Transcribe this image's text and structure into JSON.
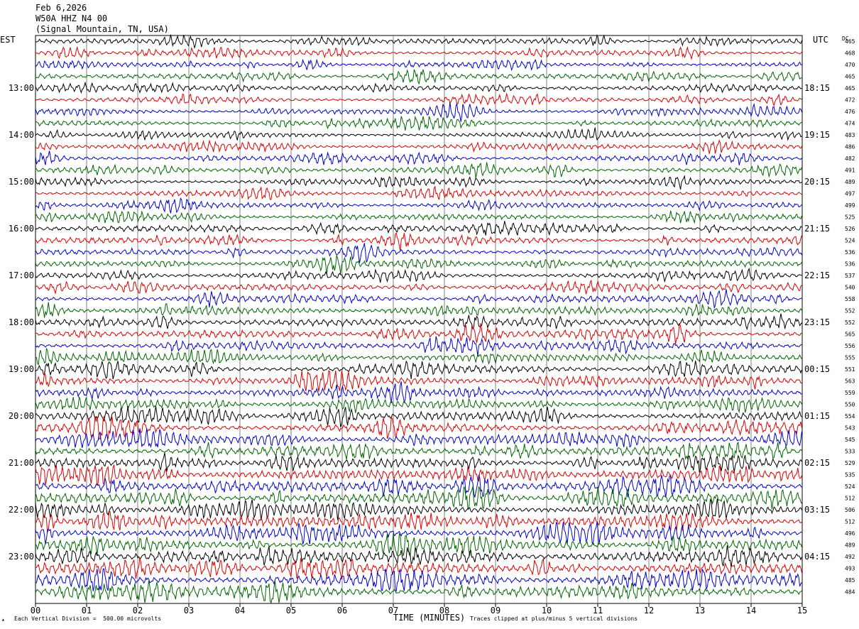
{
  "header": {
    "date": "Feb 6,2026",
    "station": "W50A HHZ N4 00",
    "location": "(Signal Mountain, TN, USA)"
  },
  "left_axis_title": "EST",
  "right_axis_title": "UTC",
  "dc_title": "DC",
  "footer": {
    "scale_note": "Each Vertical Division =  500.00 microvolts",
    "xaxis_title": "TIME (MINUTES)",
    "clip_note": "Traces clipped at plus/minus 5 vertical divisions"
  },
  "colors": {
    "trace_cycle": [
      "#000000",
      "#dd0000",
      "#0000cc",
      "#006600"
    ],
    "grid": "#808080"
  },
  "chart_data": {
    "type": "line",
    "description_of_axes": "helicorder: one trace per 15 minutes, 4 traces per hour",
    "xlabel": "TIME (MINUTES)",
    "x_ticks": [
      "00",
      "01",
      "02",
      "03",
      "04",
      "05",
      "06",
      "07",
      "08",
      "09",
      "10",
      "11",
      "12",
      "13",
      "14",
      "15"
    ],
    "xlim": [
      0,
      15
    ],
    "left_hour_labels": [
      "13:00",
      "14:00",
      "15:00",
      "16:00",
      "17:00",
      "18:00",
      "19:00",
      "20:00",
      "21:00",
      "22:00",
      "23:00"
    ],
    "right_hour_labels": [
      "18:15",
      "19:15",
      "20:15",
      "21:15",
      "22:15",
      "23:15",
      "00:15",
      "01:15",
      "02:15",
      "03:15",
      "04:15"
    ],
    "dc_offsets": [
      465,
      468,
      470,
      465,
      465,
      472,
      476,
      474,
      483,
      486,
      482,
      491,
      489,
      497,
      499,
      525,
      526,
      524,
      536,
      536,
      537,
      540,
      558,
      552,
      552,
      565,
      556,
      555,
      551,
      563,
      559,
      550,
      554,
      543,
      545,
      533,
      529,
      535,
      524,
      512,
      506,
      512,
      496,
      489,
      492,
      493,
      485,
      484
    ],
    "trace_amplitude": [
      0.3,
      0.32,
      0.28,
      0.3,
      0.3,
      0.3,
      0.32,
      0.32,
      0.3,
      0.32,
      0.32,
      0.32,
      0.32,
      0.32,
      0.32,
      0.32,
      0.34,
      0.34,
      0.34,
      0.34,
      0.36,
      0.38,
      0.38,
      0.4,
      0.4,
      0.42,
      0.42,
      0.44,
      0.46,
      0.46,
      0.46,
      0.46,
      0.48,
      0.52,
      0.56,
      0.54,
      0.52,
      0.56,
      0.58,
      0.58,
      0.6,
      0.62,
      0.64,
      0.62,
      0.62,
      0.64,
      0.66,
      0.66
    ]
  }
}
